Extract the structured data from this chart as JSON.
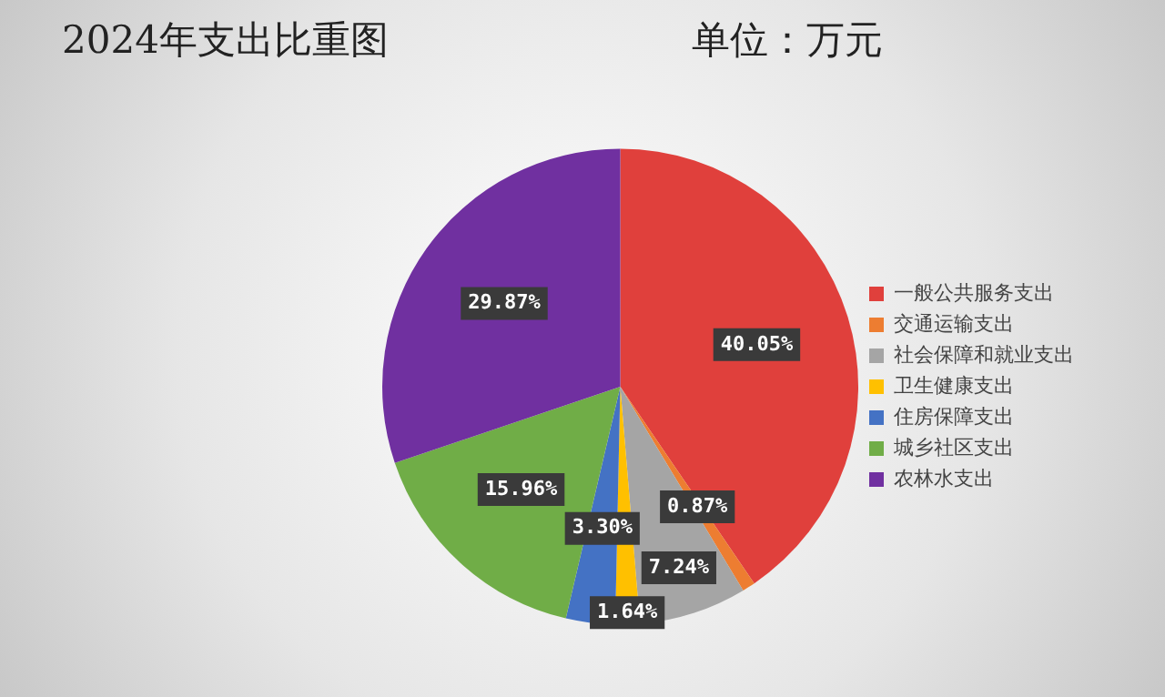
{
  "chart_data": {
    "type": "pie",
    "title": "2024年支出比重图",
    "subtitle": "单位：万元",
    "categories": [
      "一般公共服务支出",
      "交通运输支出",
      "社会保障和就业支出",
      "卫生健康支出",
      "住房保障支出",
      "城乡社区支出",
      "农林水支出"
    ],
    "values": [
      40.05,
      0.87,
      7.24,
      1.64,
      3.3,
      15.96,
      29.87
    ],
    "colors": [
      "#e0403c",
      "#ed7d31",
      "#a5a5a5",
      "#ffc000",
      "#4472c4",
      "#70ad47",
      "#7030a0"
    ],
    "value_labels": [
      "40.05%",
      "0.87%",
      "7.24%",
      "1.64%",
      "3.30%",
      "15.96%",
      "29.87%"
    ],
    "legend": "right"
  }
}
